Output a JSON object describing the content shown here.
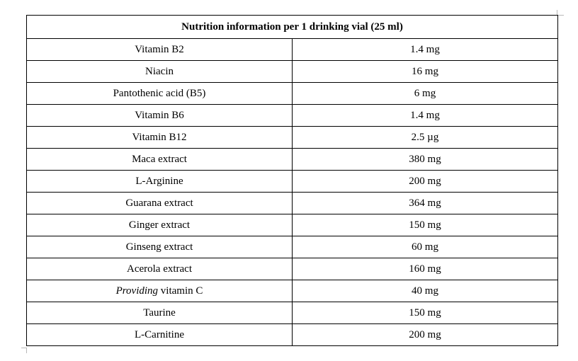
{
  "table": {
    "title": "Nutrition information per 1 drinking vial (25 ml)",
    "rows": [
      {
        "name": "Vitamin B2",
        "value": "1.4 mg"
      },
      {
        "name": "Niacin",
        "value": "16 mg"
      },
      {
        "name": "Pantothenic acid (B5)",
        "value": "6 mg"
      },
      {
        "name": "Vitamin B6",
        "value": "1.4 mg"
      },
      {
        "name": "Vitamin B12",
        "value": "2.5 µg"
      },
      {
        "name": "Maca extract",
        "value": "380 mg"
      },
      {
        "name": "L-Arginine",
        "value": "200 mg"
      },
      {
        "name": "Guarana extract",
        "value": "364 mg"
      },
      {
        "name": "Ginger extract",
        "value": "150 mg"
      },
      {
        "name": "Ginseng extract",
        "value": "60 mg"
      },
      {
        "name": "Acerola extract",
        "value": "160 mg"
      },
      {
        "name_prefix": "Providing",
        "name_suffix": " vitamin C",
        "value": "40 mg"
      },
      {
        "name": "Taurine",
        "value": "150 mg"
      },
      {
        "name": "L-Carnitine",
        "value": "200 mg"
      }
    ]
  }
}
